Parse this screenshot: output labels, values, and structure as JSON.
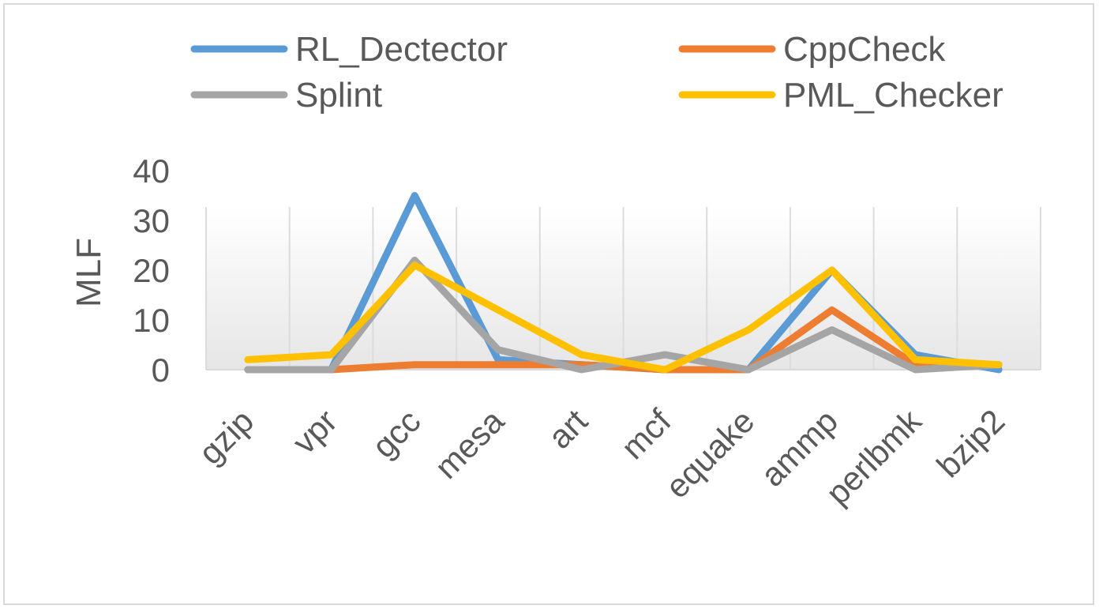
{
  "chart_data": {
    "type": "line",
    "title": "",
    "xlabel": "",
    "ylabel": "MLF",
    "ylim": [
      0,
      40
    ],
    "yticks": [
      0,
      10,
      20,
      30,
      40
    ],
    "grid": "vertical",
    "legend_position": "top",
    "categories": [
      "gzip",
      "vpr",
      "gcc",
      "mesa",
      "art",
      "mcf",
      "equake",
      "ammp",
      "perlbmk",
      "bzip2"
    ],
    "series": [
      {
        "name": "RL_Dectector",
        "color": "#5b9bd5",
        "values": [
          0,
          0,
          35,
          2,
          1,
          0,
          0,
          20,
          3,
          0
        ]
      },
      {
        "name": "CppCheck",
        "color": "#ed7d31",
        "values": [
          0,
          0,
          1,
          1,
          1,
          0,
          0,
          12,
          1,
          1
        ]
      },
      {
        "name": "Splint",
        "color": "#a5a5a5",
        "values": [
          0,
          0,
          22,
          4,
          0,
          3,
          0,
          8,
          0,
          1
        ]
      },
      {
        "name": "PML_Checker",
        "color": "#ffc000",
        "values": [
          2,
          3,
          21,
          12,
          3,
          0,
          8,
          20,
          2,
          1
        ]
      }
    ]
  }
}
